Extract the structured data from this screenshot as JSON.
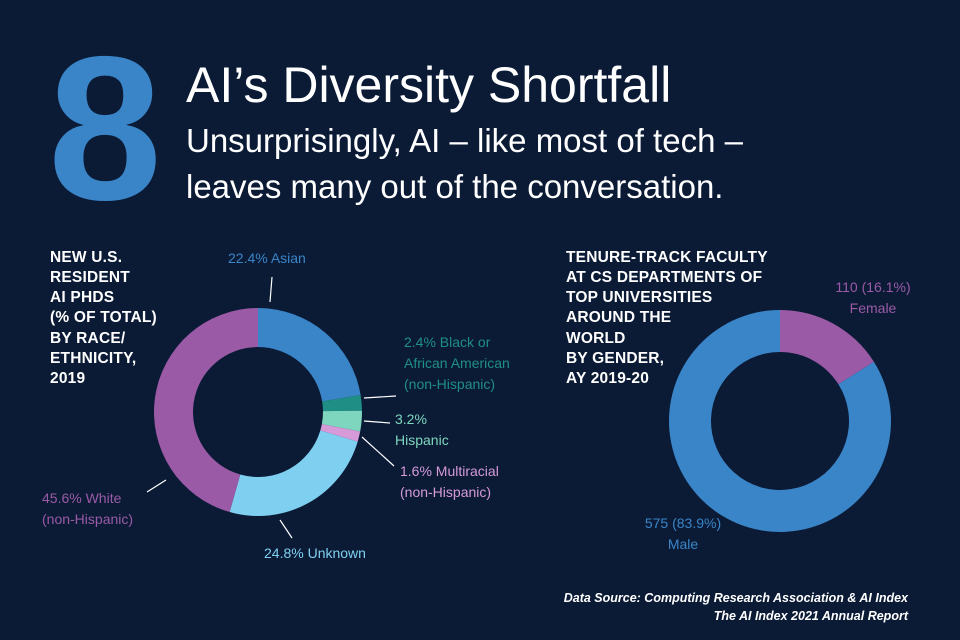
{
  "header": {
    "number": "8",
    "title": "AI’s Diversity Shortfall",
    "subtitle": "Unsurprisingly, AI – like most of tech – leaves many out of the conversation."
  },
  "colors": {
    "background": "#0b1b36",
    "number": "#3a85c8"
  },
  "chart_data": [
    {
      "type": "pie",
      "variant": "donut",
      "title": "NEW U.S.\nRESIDENT\nAI PHDS\n(% OF TOTAL)\nBY RACE/\nETHNICITY,\n2019",
      "unit": "%",
      "slices": [
        {
          "name": "Asian",
          "value": 22.4,
          "color": "#3a85c8",
          "label": [
            "22.4% Asian"
          ]
        },
        {
          "name": "Black or African American (non-Hispanic)",
          "value": 2.4,
          "color": "#1f8f86",
          "label": [
            "2.4% Black or",
            "African American",
            "(non-Hispanic)"
          ]
        },
        {
          "name": "Hispanic",
          "value": 3.2,
          "color": "#7ed6bf",
          "label": [
            "3.2%",
            "Hispanic"
          ]
        },
        {
          "name": "Multiracial (non-Hispanic)",
          "value": 1.6,
          "color": "#d69ad9",
          "label": [
            "1.6% Multiracial",
            "(non-Hispanic)"
          ]
        },
        {
          "name": "Unknown",
          "value": 24.8,
          "color": "#7fd0f0",
          "label": [
            "24.8% Unknown"
          ]
        },
        {
          "name": "White (non-Hispanic)",
          "value": 45.6,
          "color": "#9a5aa6",
          "label": [
            "45.6% White",
            "(non-Hispanic)"
          ]
        }
      ]
    },
    {
      "type": "pie",
      "variant": "donut",
      "title": "TENURE-TRACK FACULTY\nAT CS DEPARTMENTS OF\nTOP UNIVERSITIES\nAROUND THE\nWORLD\nBY GENDER,\nAY 2019-20",
      "slices": [
        {
          "name": "Female",
          "value": 110,
          "percent": 16.1,
          "color": "#9a5aa6",
          "label": [
            "110 (16.1%)",
            "Female"
          ]
        },
        {
          "name": "Male",
          "value": 575,
          "percent": 83.9,
          "color": "#3a85c8",
          "label": [
            "575 (83.9%)",
            "Male"
          ]
        }
      ]
    }
  ],
  "source": {
    "line1": "Data Source: Computing Research Association & AI Index",
    "line2": "The AI Index 2021 Annual Report"
  }
}
